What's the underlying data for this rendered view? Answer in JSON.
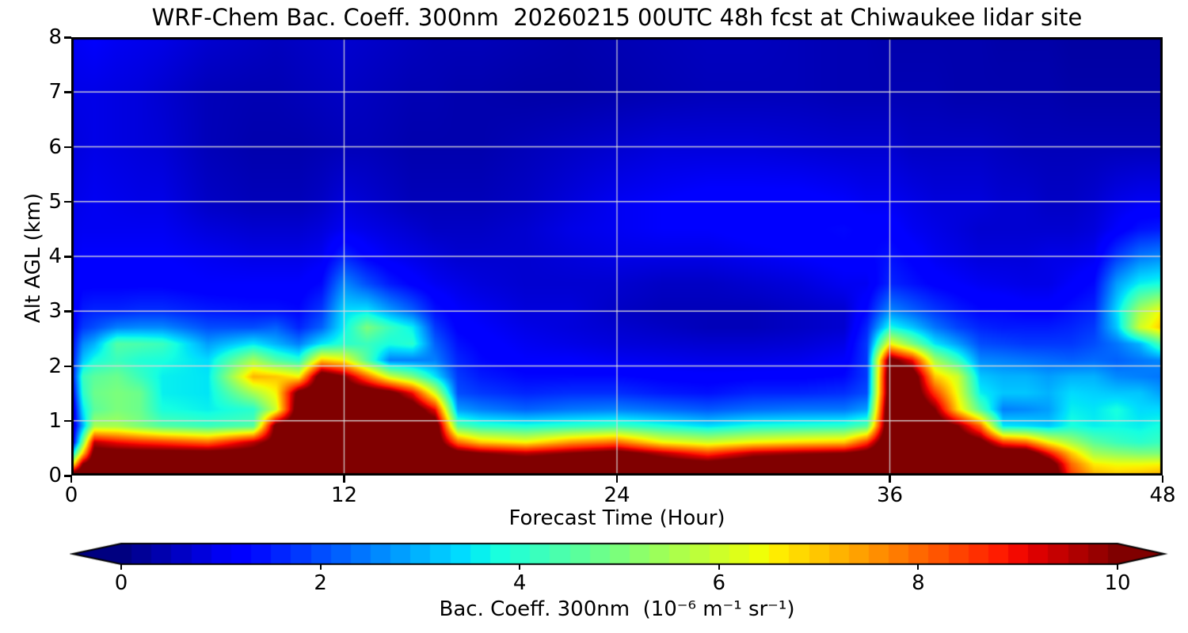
{
  "chart": {
    "title": "WRF-Chem Bac. Coeff. 300nm  20260215 00UTC 48h fcst at Chiwaukee lidar site"
  },
  "chart_data": {
    "type": "heatmap",
    "title": "WRF-Chem Bac. Coeff. 300nm  20260215 00UTC 48h fcst at Chiwaukee lidar site",
    "xlabel": "Forecast Time (Hour)",
    "ylabel": "Alt AGL (km)",
    "x_range": [
      0,
      48
    ],
    "y_range": [
      0,
      8
    ],
    "x_ticks": [
      0,
      12,
      24,
      36,
      48
    ],
    "y_ticks": [
      0,
      1,
      2,
      3,
      4,
      5,
      6,
      7,
      8
    ],
    "grid": true,
    "gridline_color": "#d9d9d9",
    "frame_color": "#000000",
    "background_color": "#ffffff",
    "colormap": "jet",
    "colorbar": {
      "label": "Bac. Coeff. 300nm  (10⁻⁶ m⁻¹ sr⁻¹)",
      "ticks": [
        0,
        2,
        4,
        6,
        8,
        10
      ],
      "range": [
        0,
        10
      ],
      "extend": "both"
    },
    "x_hours": [
      0,
      0.5,
      1,
      2,
      3,
      4,
      6,
      8,
      9,
      10,
      11,
      12,
      13,
      14,
      15,
      16,
      17,
      18,
      20,
      22,
      24,
      26,
      28,
      30,
      32,
      34,
      35,
      36,
      37,
      38,
      39,
      40,
      41,
      42,
      43,
      44,
      45,
      46,
      47,
      48
    ],
    "y_km": [
      0,
      0.2,
      0.4,
      0.6,
      0.9,
      1.2,
      1.5,
      1.8,
      2.1,
      2.4,
      2.7,
      3.0,
      3.5,
      4.0,
      4.5,
      5.0,
      6.0,
      7.0,
      8.0
    ],
    "values": [
      [
        11,
        11.5,
        11.5,
        11.5,
        11.5,
        11.5,
        11.5,
        11.5,
        12,
        12,
        12,
        12,
        12,
        12,
        12,
        12,
        12,
        11.5,
        11.5,
        11.5,
        11.5,
        11.5,
        11,
        11.5,
        11.5,
        11.5,
        11.5,
        12,
        12,
        12,
        12,
        12,
        12,
        12,
        11.5,
        8.5,
        7.3,
        7,
        7.1,
        7.3
      ],
      [
        6,
        10,
        11,
        11,
        11,
        11,
        11,
        11,
        11.5,
        11.5,
        11.5,
        11.5,
        11.5,
        11.5,
        11.5,
        11.5,
        11.5,
        11,
        11,
        11,
        11,
        10.8,
        10.5,
        11,
        11,
        11,
        11,
        12,
        12,
        11.5,
        11.5,
        11.5,
        11.5,
        11.5,
        11,
        8,
        6.6,
        6.4,
        6.4,
        6.5
      ],
      [
        3,
        7,
        10.5,
        10.5,
        10.5,
        10.5,
        10.5,
        10.5,
        11,
        11.5,
        11.5,
        11.5,
        11.5,
        11.5,
        11.5,
        11.5,
        10.5,
        10,
        9.5,
        10,
        10.5,
        9.5,
        8.5,
        9.5,
        9.8,
        10,
        10.5,
        11.5,
        11.5,
        11.5,
        11.5,
        11,
        11,
        11,
        9,
        7,
        5.5,
        5.2,
        5,
        5
      ],
      [
        0.5,
        5,
        9.5,
        9,
        8.7,
        8.5,
        8,
        9.5,
        10.5,
        11,
        11,
        11,
        11,
        11,
        11,
        11,
        8,
        7,
        6.5,
        7.5,
        8,
        6.5,
        6,
        6.5,
        6.8,
        7,
        8.5,
        11.5,
        11.5,
        11,
        11,
        10.5,
        8.5,
        8,
        6.5,
        5.5,
        4.6,
        4.2,
        4,
        4.2
      ],
      [
        0.4,
        3,
        5.5,
        5.5,
        5,
        4.5,
        4.2,
        4.5,
        10.5,
        11,
        11,
        11,
        11,
        11,
        11,
        11,
        4.5,
        4,
        3.8,
        4,
        4.2,
        3.8,
        3.4,
        3.8,
        3.9,
        4,
        4.5,
        11.5,
        11.5,
        11,
        10,
        8,
        3.5,
        3.4,
        3.2,
        3.8,
        3.6,
        3.7,
        3.6,
        3.8
      ],
      [
        0.4,
        3.5,
        4.6,
        5,
        4.8,
        3.8,
        3.6,
        4,
        6,
        11,
        11,
        11,
        11,
        11,
        11,
        9,
        2.8,
        2.5,
        2.2,
        2.4,
        2.5,
        2.3,
        2.1,
        2.3,
        2.4,
        2.4,
        2.8,
        11.5,
        11.5,
        10,
        6.8,
        4.5,
        2.5,
        2.6,
        2.8,
        3.6,
        3.5,
        3.8,
        3.4,
        3.4
      ],
      [
        0.8,
        4,
        4.8,
        5,
        4.8,
        3.6,
        3.5,
        5.5,
        6.5,
        10.5,
        11,
        11,
        11,
        10.5,
        9,
        6,
        2,
        1.8,
        1.6,
        1.7,
        1.7,
        1.5,
        1.4,
        1.6,
        1.6,
        1.7,
        2,
        11,
        11,
        8.5,
        6.3,
        3.6,
        3.2,
        3.2,
        3,
        3.4,
        3.3,
        3.2,
        3.2,
        2.8
      ],
      [
        1.2,
        4.2,
        4.6,
        4.8,
        4.2,
        3.6,
        3.5,
        7.2,
        7,
        6.5,
        11,
        10,
        8,
        6,
        5,
        3.5,
        1.8,
        1.5,
        1.3,
        1.3,
        1.3,
        1.2,
        1.15,
        1.2,
        1.2,
        1.3,
        1.8,
        11,
        11,
        7,
        6,
        3.2,
        3,
        3,
        2.8,
        3,
        3,
        2.6,
        2.5,
        2.4
      ],
      [
        1.3,
        3.2,
        3.8,
        4.2,
        3.9,
        3.8,
        3.4,
        5.5,
        4.5,
        4,
        7,
        6.5,
        4.5,
        2.5,
        2.5,
        2.5,
        1.6,
        1.3,
        1.1,
        1.1,
        1,
        0.95,
        0.9,
        0.9,
        0.95,
        1.1,
        1.8,
        10.5,
        9,
        5.5,
        4.2,
        2.6,
        2.5,
        2.4,
        2.3,
        2.2,
        2.3,
        2.2,
        2.4,
        2.6
      ],
      [
        1.2,
        2.6,
        3,
        4.5,
        4.4,
        4.2,
        2.8,
        3.5,
        3,
        2.5,
        3.5,
        4,
        4.2,
        3.8,
        4,
        2.2,
        1.4,
        1.2,
        1,
        0.9,
        0.8,
        0.75,
        0.7,
        0.7,
        0.75,
        0.9,
        1.8,
        6.5,
        5,
        3.5,
        2.8,
        2,
        1.9,
        1.8,
        1.8,
        1.8,
        2,
        2.4,
        3,
        4.5
      ],
      [
        1.1,
        1.8,
        2,
        2.5,
        2.6,
        2.6,
        2,
        2,
        2.2,
        1.6,
        2.2,
        3.6,
        5,
        4.2,
        3.6,
        1.8,
        1.2,
        1.1,
        0.9,
        0.8,
        0.7,
        0.6,
        0.5,
        0.5,
        0.6,
        0.7,
        1.6,
        3.8,
        3.2,
        2.4,
        1.9,
        1.6,
        1.5,
        1.5,
        1.5,
        1.6,
        1.8,
        3.2,
        6,
        7
      ],
      [
        1,
        1.5,
        1.6,
        1.6,
        1.7,
        1.7,
        1.5,
        1.4,
        1.4,
        1.3,
        1.8,
        3.4,
        3.5,
        2.8,
        2.2,
        1.4,
        1.1,
        1,
        0.8,
        0.8,
        0.6,
        0.5,
        0.5,
        0.5,
        0.6,
        0.7,
        1.3,
        2.6,
        2.2,
        1.8,
        1.5,
        1.3,
        1.3,
        1.2,
        1.2,
        1.4,
        1.6,
        3.4,
        5.5,
        6.5
      ],
      [
        1,
        1.2,
        1.2,
        1.2,
        1.2,
        1.2,
        1.1,
        1.1,
        1.1,
        1.1,
        1.3,
        2.6,
        2,
        1.5,
        1.2,
        1,
        0.9,
        0.8,
        0.7,
        0.7,
        0.7,
        0.6,
        0.6,
        0.7,
        0.8,
        1,
        1,
        1.6,
        1.4,
        1.2,
        1.1,
        1,
        0.95,
        0.9,
        0.9,
        1.1,
        1.3,
        2.8,
        3.6,
        3.8
      ],
      [
        1,
        1.1,
        1.1,
        1.1,
        1.1,
        1.1,
        1,
        0.9,
        0.9,
        0.9,
        1,
        1.6,
        1.2,
        1,
        0.9,
        0.8,
        0.7,
        0.7,
        0.7,
        0.8,
        0.9,
        0.9,
        0.9,
        1,
        1.1,
        1.2,
        1.2,
        1.4,
        1.2,
        1,
        0.9,
        0.8,
        0.8,
        0.8,
        0.9,
        0.9,
        1,
        1.8,
        2.4,
        2.6
      ],
      [
        0.95,
        1,
        1,
        1,
        1,
        1,
        0.8,
        0.7,
        0.7,
        0.7,
        0.8,
        1,
        0.9,
        0.8,
        0.7,
        0.6,
        0.6,
        0.6,
        0.7,
        0.9,
        1,
        1.1,
        1.1,
        1.2,
        1.2,
        1.3,
        1.2,
        1.2,
        1,
        0.9,
        0.8,
        0.7,
        0.7,
        0.7,
        0.7,
        0.7,
        0.8,
        1.1,
        1.4,
        1.5
      ],
      [
        0.9,
        0.95,
        1,
        0.95,
        0.9,
        0.9,
        0.6,
        0.5,
        0.5,
        0.5,
        0.6,
        0.8,
        0.7,
        0.6,
        0.5,
        0.5,
        0.5,
        0.5,
        0.6,
        0.8,
        1,
        1.1,
        1.2,
        1.2,
        1.2,
        1.1,
        1,
        1,
        0.9,
        0.8,
        0.8,
        0.8,
        0.7,
        0.7,
        0.6,
        0.6,
        0.7,
        0.9,
        1,
        1
      ],
      [
        0.8,
        0.85,
        0.9,
        0.85,
        0.8,
        0.75,
        0.5,
        0.4,
        0.4,
        0.4,
        0.45,
        0.5,
        0.5,
        0.45,
        0.4,
        0.4,
        0.4,
        0.4,
        0.5,
        0.6,
        0.7,
        0.8,
        0.8,
        0.8,
        0.75,
        0.7,
        0.7,
        0.7,
        0.6,
        0.6,
        0.6,
        0.6,
        0.55,
        0.5,
        0.5,
        0.5,
        0.5,
        0.5,
        0.5,
        0.5
      ],
      [
        0.9,
        0.9,
        0.9,
        0.85,
        0.8,
        0.7,
        0.5,
        0.45,
        0.45,
        0.5,
        0.55,
        0.6,
        0.55,
        0.5,
        0.45,
        0.45,
        0.4,
        0.4,
        0.35,
        0.35,
        0.4,
        0.45,
        0.5,
        0.5,
        0.5,
        0.45,
        0.45,
        0.45,
        0.45,
        0.45,
        0.4,
        0.4,
        0.4,
        0.4,
        0.4,
        0.35,
        0.35,
        0.35,
        0.35,
        0.35
      ],
      [
        1,
        1.05,
        1.1,
        1,
        0.95,
        0.9,
        0.7,
        0.6,
        0.55,
        0.6,
        0.65,
        0.7,
        0.65,
        0.6,
        0.55,
        0.5,
        0.5,
        0.5,
        0.45,
        0.4,
        0.45,
        0.5,
        0.55,
        0.55,
        0.5,
        0.45,
        0.45,
        0.4,
        0.4,
        0.4,
        0.4,
        0.4,
        0.35,
        0.35,
        0.35,
        0.3,
        0.3,
        0.3,
        0.3,
        0.3
      ]
    ]
  }
}
